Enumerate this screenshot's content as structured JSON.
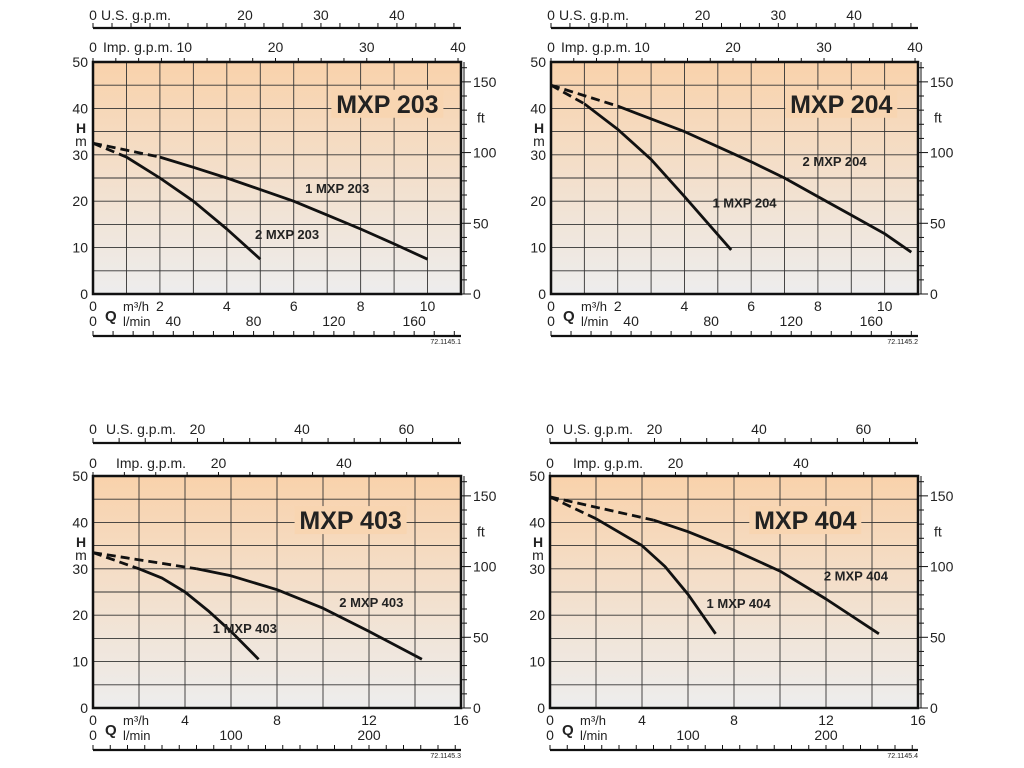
{
  "axis_labels": {
    "us_gpm": "U.S. g.p.m.",
    "imp_gpm": "Imp. g.p.m.",
    "m3h": "m³/h",
    "lmin": "l/min",
    "q": "Q",
    "h": "H",
    "m": "m",
    "ft": "ft"
  },
  "colors": {
    "plot_top": "#f9d2ab",
    "plot_bottom": "#ededed",
    "line": "#111111"
  },
  "chart_data": [
    {
      "type": "line",
      "title": "MXP 203",
      "code": "72.1145.1",
      "xlabel": "Q m³/h",
      "ylabel": "H m",
      "xlim": [
        0,
        11
      ],
      "ylim": [
        0,
        50
      ],
      "x_grid_step": 1,
      "y_grid_step": 5,
      "x_ticks_m3h": [
        0,
        2,
        4,
        6,
        8,
        10
      ],
      "x_ticks_lmin": [
        0,
        40,
        80,
        120,
        160
      ],
      "x_ticks_us_gpm": [
        0,
        20,
        30,
        40
      ],
      "x_ticks_imp_gpm": [
        0,
        10,
        20,
        30,
        40
      ],
      "y_ticks_m": [
        0,
        10,
        20,
        30,
        40,
        50
      ],
      "y_ticks_ft": [
        0,
        50,
        100,
        150
      ],
      "title_at": [
        8.8,
        41
      ],
      "series": [
        {
          "name": "1 MXP 203",
          "dashed": [
            [
              0,
              32.5
            ],
            [
              2,
              29.5
            ]
          ],
          "solid": [
            [
              2,
              29.5
            ],
            [
              3,
              27.3
            ],
            [
              4,
              25
            ],
            [
              5,
              22.5
            ],
            [
              6,
              20
            ],
            [
              7,
              17
            ],
            [
              8,
              14
            ],
            [
              9,
              10.8
            ],
            [
              10,
              7.5
            ]
          ],
          "label_at": [
            7.3,
            21.8
          ]
        },
        {
          "name": "2 MXP 203",
          "dashed": [
            [
              0,
              32.5
            ],
            [
              1,
              29.5
            ]
          ],
          "solid": [
            [
              1,
              29.5
            ],
            [
              2,
              25
            ],
            [
              3,
              20
            ],
            [
              4,
              14
            ],
            [
              5,
              7.5
            ]
          ],
          "label_at": [
            5.8,
            11.8
          ]
        }
      ]
    },
    {
      "type": "line",
      "title": "MXP 204",
      "code": "72.1145.2",
      "xlabel": "Q m³/h",
      "ylabel": "H m",
      "xlim": [
        0,
        11
      ],
      "ylim": [
        0,
        50
      ],
      "x_grid_step": 1,
      "y_grid_step": 5,
      "x_ticks_m3h": [
        0,
        2,
        4,
        6,
        8,
        10
      ],
      "x_ticks_lmin": [
        0,
        40,
        80,
        120,
        160
      ],
      "x_ticks_us_gpm": [
        0,
        20,
        30,
        40
      ],
      "x_ticks_imp_gpm": [
        0,
        10,
        20,
        30,
        40
      ],
      "y_ticks_m": [
        0,
        10,
        20,
        30,
        40,
        50
      ],
      "y_ticks_ft": [
        0,
        50,
        100,
        150
      ],
      "title_at": [
        8.7,
        41
      ],
      "series": [
        {
          "name": "1 MXP 204",
          "dashed": [
            [
              0,
              45
            ],
            [
              1,
              41
            ]
          ],
          "solid": [
            [
              1,
              41
            ],
            [
              2,
              35.5
            ],
            [
              3,
              29
            ],
            [
              4,
              21
            ],
            [
              5.4,
              9.5
            ]
          ],
          "label_at": [
            5.8,
            18.6
          ]
        },
        {
          "name": "2 MXP 204",
          "dashed": [
            [
              0,
              45
            ],
            [
              2,
              40.5
            ]
          ],
          "solid": [
            [
              2,
              40.5
            ],
            [
              4,
              35
            ],
            [
              6,
              28.5
            ],
            [
              7,
              25
            ],
            [
              8,
              21
            ],
            [
              9,
              17
            ],
            [
              10,
              13
            ],
            [
              10.8,
              9
            ]
          ],
          "label_at": [
            8.5,
            27.6
          ]
        }
      ]
    },
    {
      "type": "line",
      "title": "MXP 403",
      "code": "72.1145.3",
      "xlabel": "Q m³/h",
      "ylabel": "H m",
      "xlim": [
        0,
        16
      ],
      "ylim": [
        0,
        50
      ],
      "x_grid_step": 2,
      "y_grid_step": 5,
      "x_ticks_m3h": [
        0,
        4,
        8,
        12,
        16
      ],
      "x_ticks_lmin": [
        0,
        100,
        200
      ],
      "x_ticks_us_gpm": [
        0,
        20,
        40,
        60
      ],
      "x_ticks_imp_gpm": [
        0,
        20,
        40
      ],
      "y_ticks_m": [
        0,
        10,
        20,
        30,
        40,
        50
      ],
      "y_ticks_ft": [
        0,
        50,
        100,
        150
      ],
      "title_at": [
        11.2,
        40.5
      ],
      "series": [
        {
          "name": "1 MXP 403",
          "dashed": [
            [
              0,
              33.5
            ],
            [
              2,
              30
            ]
          ],
          "solid": [
            [
              2,
              30
            ],
            [
              3,
              28
            ],
            [
              4,
              25
            ],
            [
              5,
              21
            ],
            [
              6,
              16.5
            ],
            [
              7.2,
              10.5
            ]
          ],
          "label_at": [
            6.6,
            16.2
          ]
        },
        {
          "name": "2 MXP 403",
          "dashed": [
            [
              0,
              33.5
            ],
            [
              4.5,
              30
            ]
          ],
          "solid": [
            [
              4.5,
              30
            ],
            [
              6,
              28.5
            ],
            [
              8,
              25.5
            ],
            [
              10,
              21.5
            ],
            [
              12,
              16.5
            ],
            [
              14.3,
              10.5
            ]
          ],
          "label_at": [
            12.1,
            21.8
          ]
        }
      ]
    },
    {
      "type": "line",
      "title": "MXP 404",
      "code": "72.1145.4",
      "xlabel": "Q m³/h",
      "ylabel": "H m",
      "xlim": [
        0,
        16
      ],
      "ylim": [
        0,
        50
      ],
      "x_grid_step": 2,
      "y_grid_step": 5,
      "x_ticks_m3h": [
        0,
        4,
        8,
        12,
        16
      ],
      "x_ticks_lmin": [
        0,
        100,
        200
      ],
      "x_ticks_us_gpm": [
        0,
        20,
        40,
        60
      ],
      "x_ticks_imp_gpm": [
        0,
        20,
        40
      ],
      "y_ticks_m": [
        0,
        10,
        20,
        30,
        40,
        50
      ],
      "y_ticks_ft": [
        0,
        50,
        100,
        150
      ],
      "title_at": [
        11.1,
        40.5
      ],
      "series": [
        {
          "name": "1 MXP 404",
          "dashed": [
            [
              0,
              45.5
            ],
            [
              2,
              40.8
            ]
          ],
          "solid": [
            [
              2,
              40.8
            ],
            [
              4,
              35
            ],
            [
              5,
              30.5
            ],
            [
              6,
              24.5
            ],
            [
              7.2,
              16
            ]
          ],
          "label_at": [
            8.2,
            21.5
          ]
        },
        {
          "name": "2 MXP 404",
          "dashed": [
            [
              0,
              45.5
            ],
            [
              4.5,
              40.5
            ]
          ],
          "solid": [
            [
              4.5,
              40.5
            ],
            [
              6,
              38
            ],
            [
              8,
              34
            ],
            [
              10,
              29.5
            ],
            [
              12,
              23.5
            ],
            [
              14.3,
              16
            ]
          ],
          "label_at": [
            13.3,
            27.5
          ]
        }
      ]
    }
  ]
}
